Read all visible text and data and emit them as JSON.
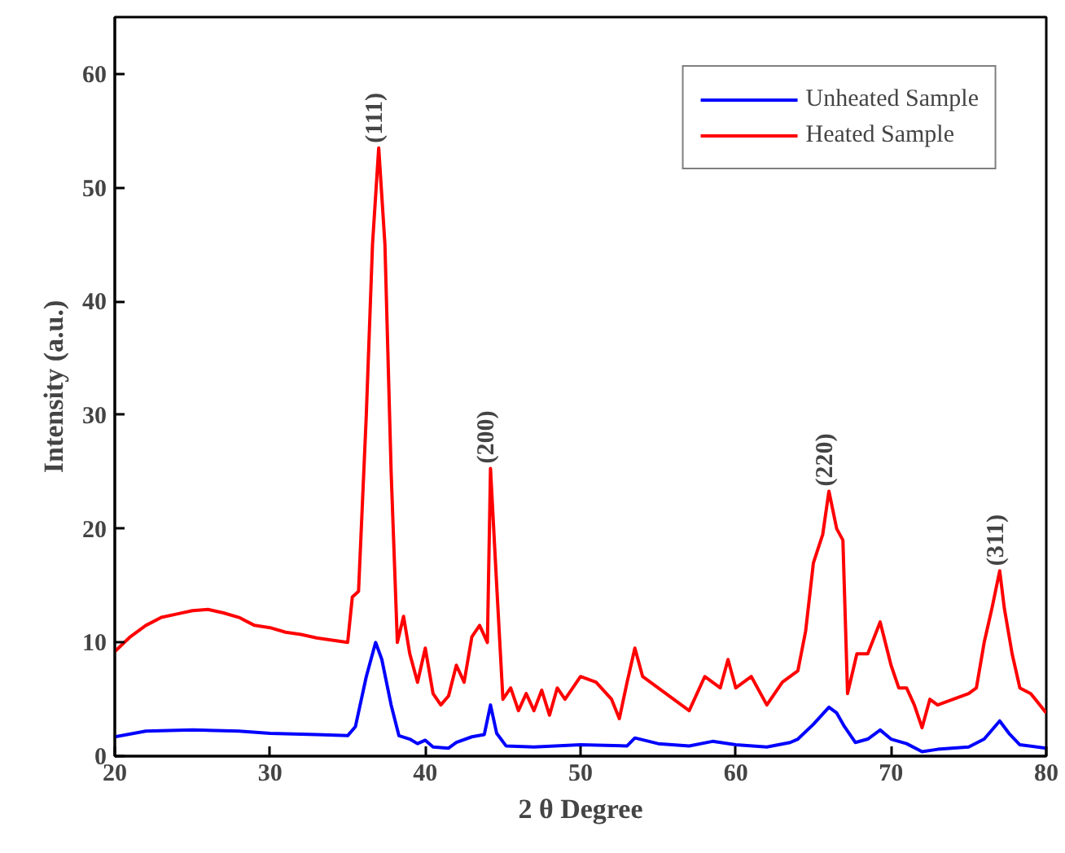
{
  "chart_data": {
    "type": "line",
    "xlabel": "2 θ Degree",
    "ylabel": "Intensity (a.u.)",
    "xlim": [
      20,
      80
    ],
    "ylim": [
      0,
      65
    ],
    "xticks": [
      20,
      30,
      40,
      50,
      60,
      70,
      80
    ],
    "yticks": [
      0,
      10,
      20,
      30,
      40,
      50,
      60
    ],
    "legend": "top right",
    "grid": false,
    "line_style": "solid",
    "series": [
      {
        "name": "Unheated Sample",
        "color": "#0000ff",
        "x": [
          20,
          22,
          25,
          28,
          30,
          33,
          35,
          35.5,
          36.2,
          36.8,
          37.2,
          37.8,
          38.3,
          39,
          39.5,
          40,
          40.5,
          41.5,
          42,
          43,
          43.8,
          44.2,
          44.6,
          45.2,
          47,
          50,
          53,
          53.5,
          55,
          57,
          58.5,
          60,
          62,
          63.5,
          64,
          65,
          66,
          66.5,
          67,
          67.7,
          68.5,
          69.3,
          70,
          71,
          72,
          73,
          75,
          76,
          77,
          77.6,
          78.3,
          80
        ],
        "values": [
          1.7,
          2.2,
          2.3,
          2.2,
          2.0,
          1.9,
          1.8,
          2.6,
          7,
          10,
          8.5,
          4.5,
          1.8,
          1.5,
          1.1,
          1.4,
          0.8,
          0.7,
          1.2,
          1.7,
          1.9,
          4.5,
          2,
          0.9,
          0.8,
          1.0,
          0.9,
          1.6,
          1.1,
          0.9,
          1.3,
          1.0,
          0.8,
          1.2,
          1.5,
          2.8,
          4.3,
          3.8,
          2.6,
          1.2,
          1.5,
          2.3,
          1.5,
          1.1,
          0.4,
          0.6,
          0.8,
          1.5,
          3.1,
          2.0,
          1.0,
          0.7
        ]
      },
      {
        "name": "Heated Sample",
        "color": "#ff0000",
        "x": [
          20,
          21,
          22,
          23,
          24,
          25,
          26,
          27,
          28,
          29,
          30,
          31,
          32,
          33,
          34,
          35,
          35.3,
          35.7,
          36.2,
          36.6,
          37,
          37.4,
          37.8,
          38.2,
          38.6,
          39,
          39.5,
          40,
          40.5,
          41,
          41.5,
          42,
          42.5,
          43,
          43.5,
          44,
          44.2,
          44.6,
          45,
          45.5,
          46,
          46.5,
          47,
          47.5,
          48,
          48.5,
          49,
          50,
          51,
          52,
          52.5,
          53,
          53.5,
          54,
          55,
          56,
          57,
          58,
          59,
          59.5,
          60,
          61,
          62,
          63,
          64,
          64.5,
          65,
          65.6,
          66,
          66.5,
          66.9,
          67.2,
          67.8,
          68.5,
          69.3,
          70,
          70.5,
          71,
          71.5,
          72,
          72.5,
          73,
          74,
          75,
          75.5,
          76,
          76.5,
          77,
          77.3,
          77.8,
          78.3,
          79,
          80
        ],
        "values": [
          9.2,
          10.5,
          11.5,
          12.2,
          12.5,
          12.8,
          12.9,
          12.6,
          12.2,
          11.5,
          11.3,
          10.9,
          10.7,
          10.4,
          10.2,
          10.0,
          14,
          14.5,
          30,
          45,
          53.5,
          45,
          25,
          10,
          12.3,
          9,
          6.5,
          9.5,
          5.5,
          4.5,
          5.3,
          8,
          6.5,
          10.5,
          11.5,
          10.0,
          25.3,
          15,
          5,
          6,
          4,
          5.5,
          4,
          5.8,
          3.6,
          6,
          5,
          7,
          6.5,
          5,
          3.3,
          6.5,
          9.5,
          7,
          6,
          5,
          4,
          7,
          6,
          8.5,
          6,
          7,
          4.5,
          6.5,
          7.5,
          11,
          17,
          19.5,
          23.3,
          20,
          19,
          5.5,
          9,
          9,
          11.8,
          8,
          6,
          6,
          4.5,
          2.5,
          5,
          4.5,
          5,
          5.5,
          6,
          10,
          13,
          16.3,
          13,
          9,
          6,
          5.5,
          3.8
        ]
      }
    ],
    "annotations": [
      {
        "text": "(111)",
        "x": 37,
        "y": 53.5
      },
      {
        "text": "(200)",
        "x": 44.2,
        "y": 25.3
      },
      {
        "text": "(220)",
        "x": 66,
        "y": 23.3
      },
      {
        "text": "(311)",
        "x": 77,
        "y": 16.3
      }
    ]
  }
}
